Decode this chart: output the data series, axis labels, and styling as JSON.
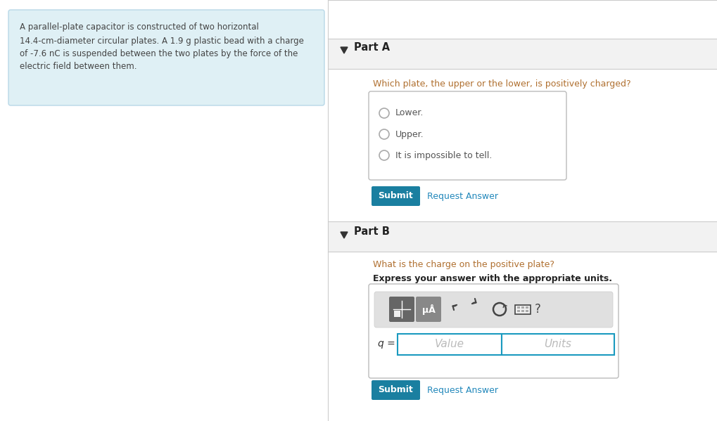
{
  "bg_color": "#ffffff",
  "left_panel_bg": "#dff0f5",
  "left_panel_border": "#b8d8e8",
  "left_panel_text_color": "#444444",
  "divider_color": "#cccccc",
  "part_header_bg": "#f2f2f2",
  "part_header_color": "#222222",
  "part_a_label": "Part A",
  "part_b_label": "Part B",
  "question_a_color": "#b07030",
  "question_a": "Which plate, the upper or the lower, is positively charged?",
  "options": [
    "Lower.",
    "Upper.",
    "It is impossible to tell."
  ],
  "option_color": "#555555",
  "radio_edge_color": "#aaaaaa",
  "options_box_border": "#bbbbbb",
  "submit_bg": "#1a7fa0",
  "submit_color": "#ffffff",
  "submit_label": "Submit",
  "request_answer_color": "#2288bb",
  "request_answer_label": "Request Answer",
  "question_b_color": "#b07030",
  "question_b": "What is the charge on the positive plate?",
  "express_label": "Express your answer with the appropriate units.",
  "express_color": "#222222",
  "input_border_color": "#1a9abf",
  "value_placeholder": "Value",
  "units_placeholder": "Units",
  "q_label": "q =",
  "toolbar_bg": "#e0e0e0",
  "icon_dark": "#666666",
  "icon_medium": "#888888",
  "arrow_icon_color": "#444444",
  "question_mark_color": "#444444",
  "left_text_line1": "A parallel-plate capacitor is constructed of two horizontal",
  "left_text_line2": "14.4-cm-diameter circular plates. A 1.9 g plastic bead with a charge",
  "left_text_line3": "of -7.6 nC is suspended between the two plates by the force of the",
  "left_text_line4": "electric field between them."
}
